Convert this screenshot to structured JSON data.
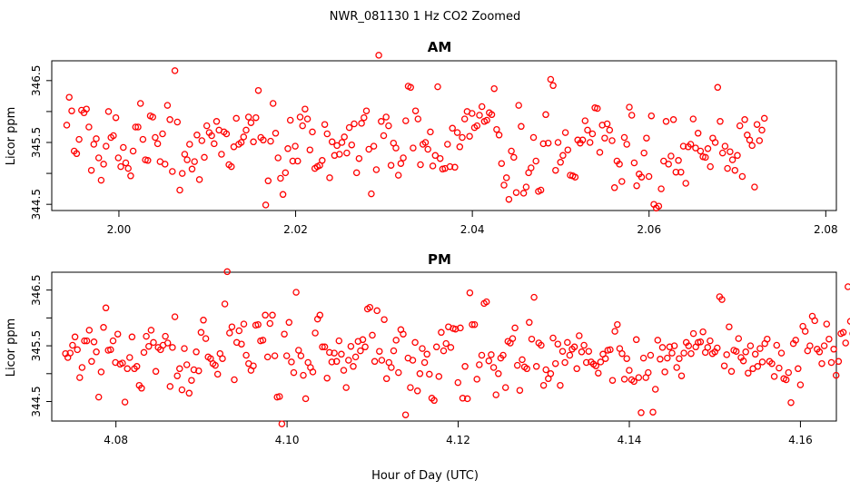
{
  "title": "NWR_081130  1 Hz CO2 Zoomed",
  "xlabel": "Hour of Day (UTC)",
  "point_color": "#ff0000",
  "chart_data": [
    {
      "type": "scatter",
      "panel_title": "AM",
      "ylabel": "Licor ppm",
      "xlim": [
        1.9924,
        2.0812
      ],
      "ylim": [
        344.4,
        346.82
      ],
      "x_ticks": [
        2.0,
        2.02,
        2.04,
        2.06,
        2.08
      ],
      "x_tick_labels": [
        "2.00",
        "2.02",
        "2.04",
        "2.06",
        "2.08"
      ],
      "y_ticks": [
        344.5,
        345.5,
        346.5
      ],
      "y_tick_labels": [
        "344.5",
        "345.5",
        "346.5"
      ],
      "y_ticks_minor": [
        345.0,
        346.0
      ],
      "series": [
        {
          "name": "CO2",
          "x_start": 1.9941,
          "x_step": 0.000278,
          "y": [
            345.78,
            346.23,
            346.01,
            345.36,
            345.32,
            345.55,
            346.02,
            345.98,
            346.04,
            345.75,
            345.05,
            345.47,
            345.56,
            345.25,
            344.89,
            345.15,
            345.44,
            346.0,
            345.58,
            345.61,
            345.9,
            345.25,
            345.11,
            345.42,
            345.17,
            345.08,
            344.96,
            345.36,
            345.75,
            345.75,
            346.13,
            345.55,
            345.22,
            345.21,
            345.93,
            345.91,
            345.58,
            345.48,
            345.19,
            345.64,
            345.15,
            346.1,
            345.87,
            345.03,
            346.66,
            345.83,
            344.73,
            345.0,
            345.31,
            345.22,
            345.47,
            345.07,
            345.19,
            345.62,
            344.9,
            345.53,
            345.26,
            345.77,
            345.66,
            345.61,
            345.48,
            345.84,
            345.7,
            345.31,
            345.67,
            345.64,
            345.14,
            345.11,
            345.43,
            345.89,
            345.47,
            345.5,
            345.59,
            345.7,
            345.91,
            345.82,
            345.51,
            345.9,
            346.34,
            345.58,
            345.54,
            344.49,
            344.88,
            345.52,
            346.13,
            345.65,
            345.25,
            344.92,
            344.66,
            345.01,
            345.4,
            345.86,
            345.2,
            345.44,
            345.2,
            345.91,
            345.77,
            346.04,
            345.88,
            345.38,
            345.67,
            345.08,
            345.11,
            345.13,
            345.21,
            345.79,
            345.64,
            344.93,
            345.51,
            345.29,
            345.45,
            345.31,
            345.5,
            345.59,
            345.33,
            345.74,
            345.46,
            345.8,
            345.01,
            345.24,
            345.81,
            345.9,
            346.01,
            345.39,
            344.67,
            345.44,
            345.06,
            346.91,
            345.84,
            345.61,
            345.91,
            345.77,
            345.13,
            345.49,
            345.41,
            344.97,
            345.16,
            345.25,
            345.85,
            346.41,
            346.39,
            345.41,
            346.01,
            345.88,
            345.14,
            345.47,
            345.5,
            345.39,
            345.67,
            345.12,
            345.29,
            346.4,
            345.24,
            345.07,
            345.08,
            345.47,
            345.11,
            345.73,
            345.1,
            345.66,
            345.43,
            345.58,
            345.88,
            346.0,
            345.6,
            345.97,
            345.74,
            345.77,
            345.94,
            346.08,
            345.84,
            345.86,
            345.98,
            345.95,
            346.37,
            345.71,
            345.62,
            345.16,
            344.81,
            344.93,
            344.58,
            345.36,
            345.26,
            344.69,
            346.1,
            345.76,
            344.68,
            344.78,
            345.01,
            345.09,
            345.58,
            345.2,
            344.71,
            344.73,
            345.48,
            345.95,
            345.49,
            346.52,
            346.42,
            345.05,
            345.5,
            345.18,
            345.29,
            345.66,
            345.38,
            344.97,
            344.96,
            344.94,
            345.54,
            345.49,
            345.54,
            345.85,
            345.7,
            345.5,
            345.64,
            346.06,
            346.05,
            345.34,
            345.78,
            345.57,
            345.8,
            345.7,
            345.53,
            344.77,
            345.2,
            345.15,
            344.87,
            345.58,
            345.47,
            346.07,
            345.94,
            345.17,
            344.8,
            344.99,
            344.94,
            345.33,
            345.57,
            344.95,
            345.93,
            344.5,
            344.44,
            344.47,
            344.75,
            345.2,
            345.84,
            345.15,
            345.28,
            345.87,
            345.02,
            345.21,
            345.02,
            345.44,
            344.84,
            345.43,
            345.47,
            345.88,
            345.41,
            345.65,
            345.36,
            345.27,
            345.26,
            345.4,
            345.11,
            345.57,
            345.5,
            346.39,
            345.84,
            345.33,
            345.44,
            345.08,
            345.35,
            345.22,
            345.05,
            345.29,
            345.77,
            344.95,
            345.87,
            345.62,
            345.54,
            345.45,
            344.78,
            345.79,
            345.53,
            345.7,
            345.89
          ]
        }
      ]
    },
    {
      "type": "scatter",
      "panel_title": "PM",
      "ylabel": "Licor ppm",
      "xlim": [
        4.0725,
        4.1642
      ],
      "ylim": [
        344.15,
        346.82
      ],
      "x_ticks": [
        4.08,
        4.1,
        4.12,
        4.14,
        4.16
      ],
      "x_tick_labels": [
        "4.08",
        "4.10",
        "4.12",
        "4.14",
        "4.16"
      ],
      "y_ticks": [
        344.5,
        345.5,
        346.5
      ],
      "y_tick_labels": [
        "344.5",
        "345.5",
        "346.5"
      ],
      "y_ticks_minor": [
        345.0,
        346.0
      ],
      "series": [
        {
          "name": "CO2",
          "x_start": 4.0741,
          "x_step": 0.000278,
          "y": [
            345.36,
            345.29,
            345.37,
            345.51,
            345.66,
            345.43,
            344.93,
            345.11,
            345.59,
            345.59,
            345.78,
            345.22,
            345.57,
            345.39,
            344.58,
            345.03,
            345.83,
            346.18,
            345.42,
            345.43,
            345.59,
            345.2,
            345.71,
            345.17,
            345.19,
            344.49,
            345.09,
            345.29,
            345.66,
            345.09,
            345.13,
            344.79,
            344.74,
            345.38,
            345.67,
            345.49,
            345.78,
            345.56,
            345.04,
            345.47,
            345.43,
            345.51,
            345.67,
            345.55,
            344.77,
            345.47,
            346.02,
            344.96,
            345.09,
            344.71,
            345.45,
            345.16,
            344.65,
            344.88,
            345.07,
            345.39,
            345.05,
            345.74,
            345.96,
            345.63,
            345.3,
            345.27,
            345.18,
            345.15,
            344.99,
            345.36,
            345.27,
            346.25,
            346.83,
            345.73,
            345.84,
            344.89,
            345.56,
            345.77,
            345.53,
            345.89,
            345.33,
            345.18,
            345.06,
            345.14,
            345.87,
            345.88,
            345.59,
            345.6,
            346.05,
            345.3,
            345.9,
            346.05,
            345.32,
            344.58,
            344.59,
            344.1,
            345.71,
            345.32,
            345.92,
            345.21,
            345.02,
            346.46,
            345.42,
            345.32,
            344.97,
            344.55,
            345.2,
            345.11,
            345.03,
            345.73,
            345.98,
            346.05,
            345.48,
            345.48,
            344.92,
            345.38,
            345.21,
            345.37,
            345.22,
            345.59,
            345.35,
            345.06,
            344.75,
            345.24,
            345.49,
            345.13,
            345.3,
            345.58,
            345.41,
            345.61,
            345.48,
            346.16,
            346.19,
            345.69,
            345.22,
            346.13,
            345.4,
            345.24,
            345.97,
            344.91,
            345.2,
            345.11,
            345.41,
            345.6,
            345.02,
            345.79,
            345.71,
            344.26,
            345.28,
            344.75,
            345.24,
            345.56,
            344.69,
            345.0,
            345.45,
            345.2,
            345.35,
            344.99,
            344.56,
            344.52,
            345.48,
            344.95,
            345.74,
            345.41,
            345.54,
            345.84,
            345.47,
            345.81,
            345.8,
            344.84,
            345.82,
            344.56,
            345.13,
            344.55,
            346.45,
            345.88,
            345.88,
            344.9,
            345.16,
            345.33,
            346.26,
            346.29,
            345.23,
            345.34,
            345.11,
            344.62,
            345.0,
            345.28,
            345.33,
            344.75,
            345.58,
            345.55,
            345.63,
            345.82,
            345.15,
            344.7,
            345.25,
            345.12,
            345.09,
            345.92,
            345.62,
            346.37,
            345.13,
            345.55,
            345.51,
            344.79,
            345.07,
            344.91,
            345.0,
            345.64,
            345.18,
            345.53,
            344.79,
            345.4,
            345.2,
            345.56,
            345.33,
            345.44,
            345.48,
            345.09,
            345.68,
            345.39,
            345.51,
            345.2,
            345.4,
            345.21,
            345.17,
            345.14,
            345.01,
            345.21,
            345.35,
            345.27,
            345.42,
            345.43,
            344.88,
            345.76,
            345.88,
            345.45,
            345.36,
            344.9,
            345.27,
            345.06,
            344.89,
            344.86,
            345.61,
            344.93,
            344.3,
            345.28,
            344.93,
            345.02,
            345.33,
            344.31,
            344.72,
            345.6,
            345.26,
            345.47,
            345.03,
            345.28,
            345.48,
            345.37,
            345.5,
            345.11,
            345.27,
            344.96,
            345.37,
            345.56,
            345.5,
            345.36,
            345.72,
            345.48,
            345.56,
            345.57,
            345.75,
            345.38,
            345.47,
            345.59,
            345.36,
            345.39,
            345.46,
            346.38,
            346.33,
            345.14,
            345.34,
            345.84,
            345.04,
            345.42,
            345.4,
            345.63,
            345.29,
            345.23,
            345.39,
            345.01,
            345.5,
            345.09,
            345.35,
            345.13,
            345.45,
            345.21,
            345.54,
            345.62,
            345.22,
            345.18,
            344.95,
            345.51,
            345.1,
            345.37,
            344.91,
            344.89,
            345.02,
            344.48,
            345.54,
            345.6,
            345.09,
            344.8,
            345.85,
            345.76,
            345.41,
            345.5,
            346.03,
            345.95,
            345.44,
            345.39,
            345.18,
            345.5,
            345.89,
            345.62,
            345.2,
            345.44,
            344.97,
            345.22,
            345.72,
            345.74,
            345.55,
            346.56,
            345.94,
            345.72,
            344.81,
            345.31,
            345.24,
            345.85
          ]
        }
      ]
    }
  ]
}
